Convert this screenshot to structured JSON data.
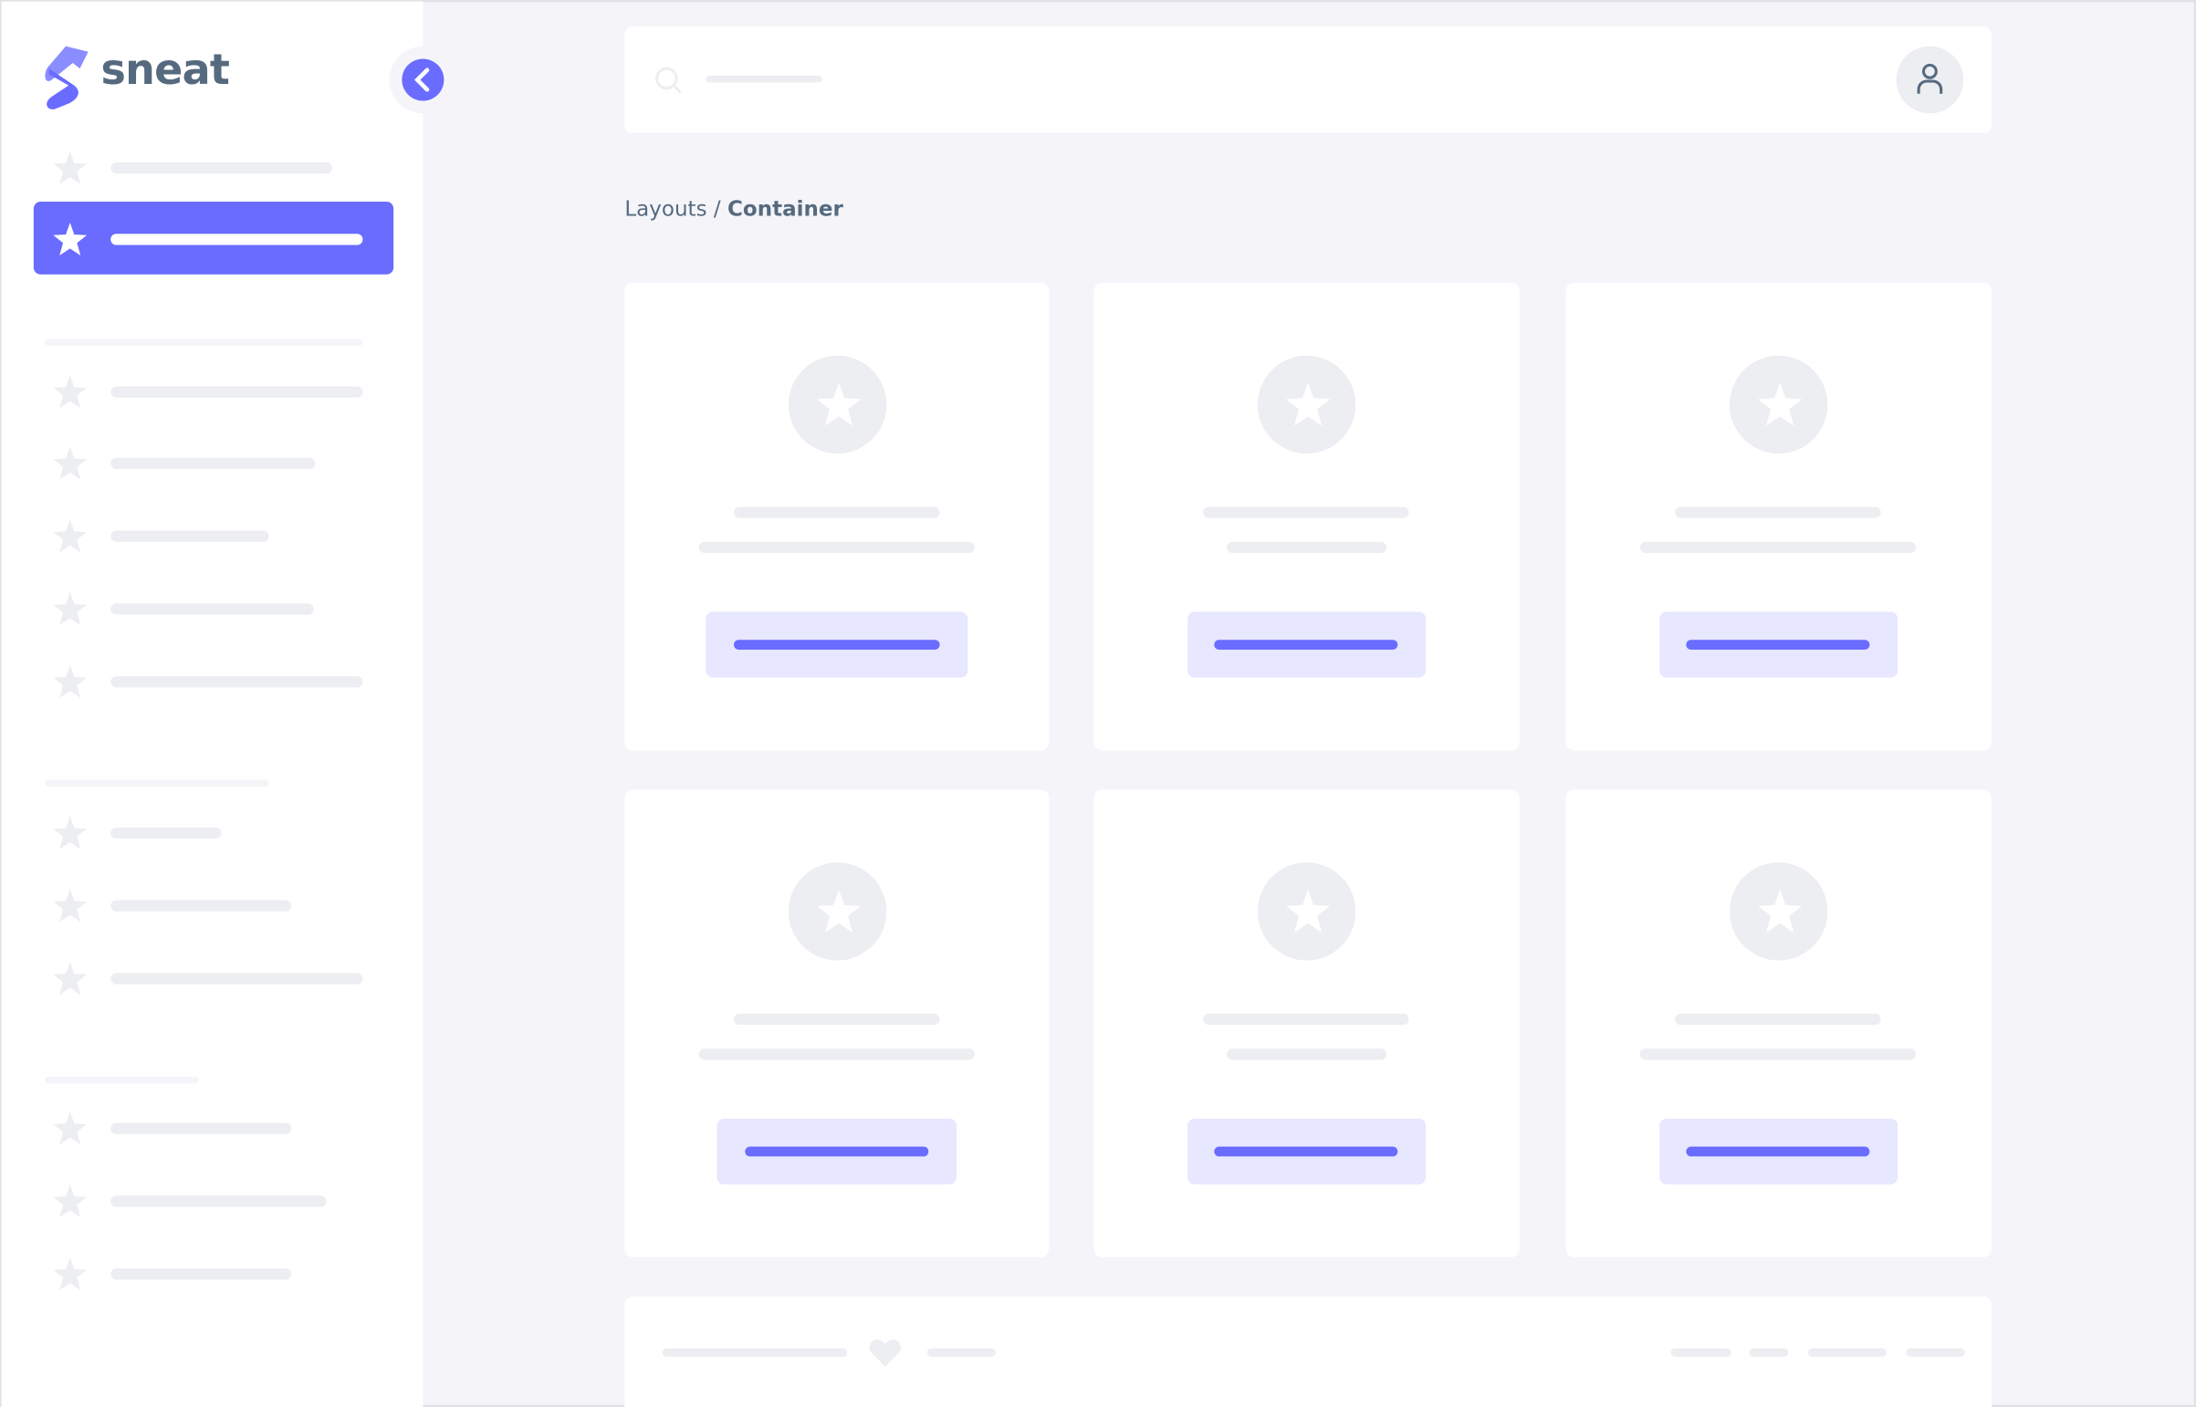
{
  "brand": {
    "name": "sneat",
    "logo_icon": "sneat-logo-icon"
  },
  "colors": {
    "primary": "#696cff",
    "primary_light": "#e7e7ff",
    "placeholder": "#eceef1",
    "background": "#f5f5f9",
    "text": "#566a7f"
  },
  "sidebar": {
    "collapse_icon": "chevron-left-icon",
    "item_icon": "star-icon",
    "active_index": 1
  },
  "navbar": {
    "search_icon": "search-icon",
    "user_icon": "user-icon"
  },
  "breadcrumb": {
    "parent": "Layouts",
    "separator": "/",
    "current": "Container"
  },
  "cards": {
    "count": 6,
    "icon": "star-icon"
  },
  "footer": {
    "icon": "heart-icon"
  }
}
